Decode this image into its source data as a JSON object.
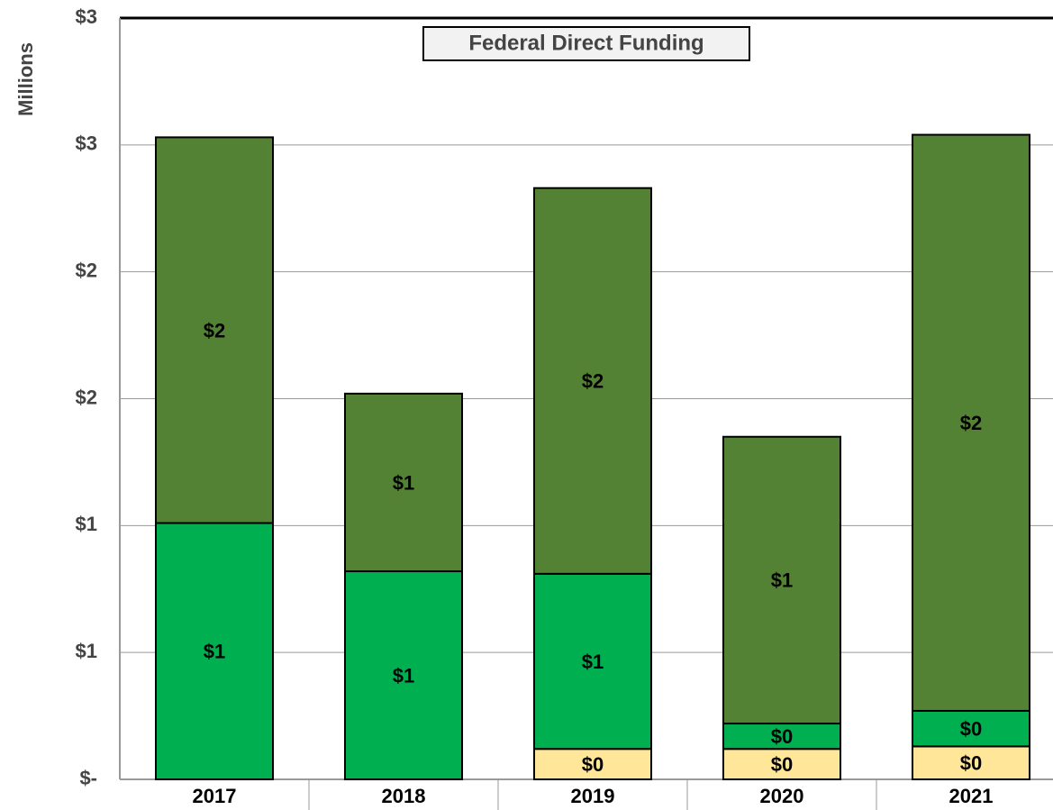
{
  "chart_data": {
    "type": "stacked_bar",
    "title": "Federal Direct Funding",
    "y_label": "Millions",
    "categories": [
      "2017",
      "2018",
      "2019",
      "2020",
      "2021"
    ],
    "series": [
      {
        "color": "#ffe699",
        "values": [
          0,
          0,
          0.12,
          0.12,
          0.13
        ],
        "value_labels": [
          null,
          null,
          "$0",
          "$0",
          "$0"
        ]
      },
      {
        "color": "#00b050",
        "values": [
          1.01,
          0.82,
          0.69,
          0.1,
          0.14
        ],
        "value_labels": [
          "$1",
          "$1",
          "$1",
          "$0",
          "$0"
        ]
      },
      {
        "color": "#548235",
        "values": [
          1.52,
          0.7,
          1.52,
          1.13,
          2.27
        ],
        "value_labels": [
          "$2",
          "$1",
          "$2",
          "$1",
          "$2"
        ]
      }
    ],
    "ylim": [
      0,
      3
    ],
    "yticks": [
      {
        "value": 0,
        "label": "$-"
      },
      {
        "value": 0.5,
        "label": "$1"
      },
      {
        "value": 1,
        "label": "$1"
      },
      {
        "value": 1.5,
        "label": "$2"
      },
      {
        "value": 2,
        "label": "$2"
      },
      {
        "value": 2.5,
        "label": "$3"
      },
      {
        "value": 3,
        "label": "$3"
      }
    ],
    "grid": true
  }
}
